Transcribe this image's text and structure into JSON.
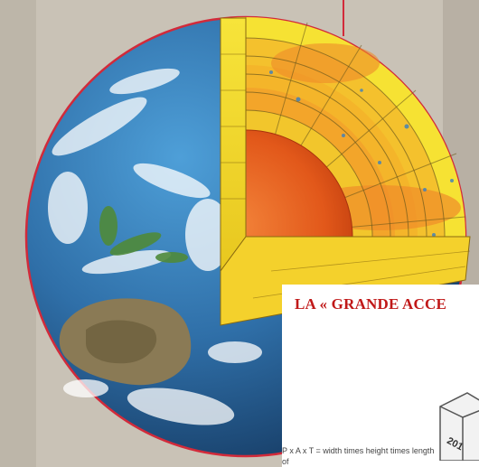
{
  "inset": {
    "title": "LA « GRANDE ACCE",
    "caption": "P x A x T = width times height times length of",
    "cube_label": "201"
  },
  "colors": {
    "background": "#c9c2b6",
    "ocean": "#2f6fa8",
    "core": "#e2581a",
    "mantle": "#f4b52a",
    "crust": "#f6e233",
    "outline": "#d22a3a",
    "title_red": "#c01818"
  }
}
